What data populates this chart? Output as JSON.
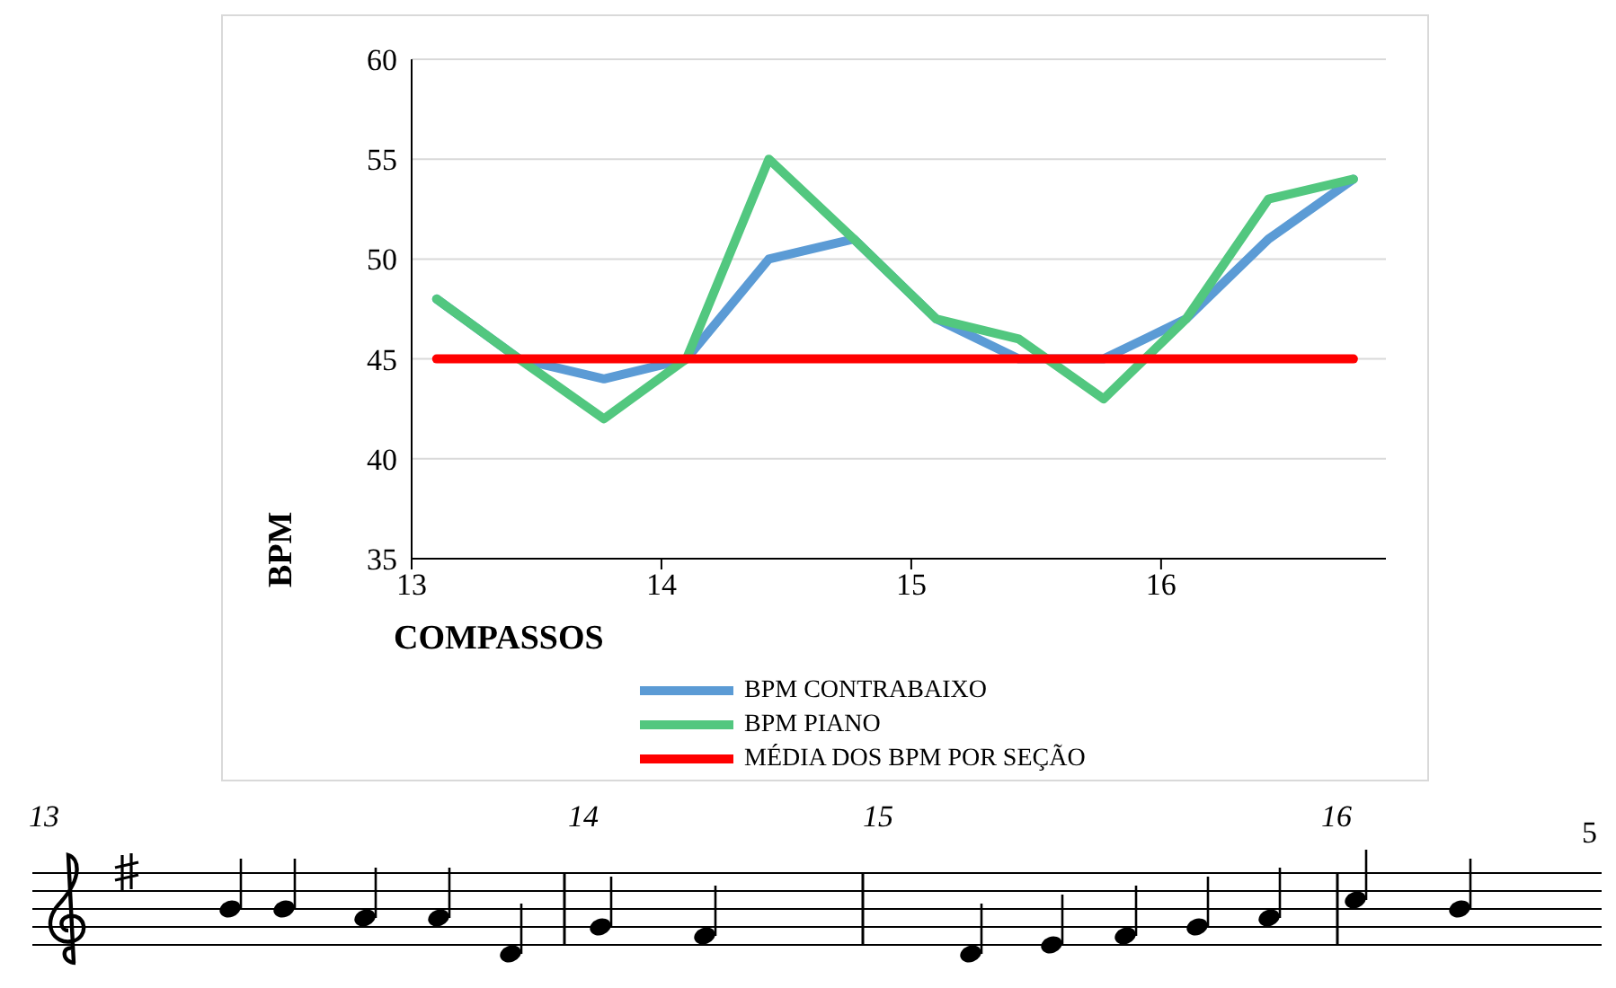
{
  "chart_data": {
    "type": "line",
    "xlabel": "COMPASSOS",
    "ylabel": "BPM",
    "x": [
      13.1,
      13.43,
      13.77,
      14.1,
      14.43,
      14.77,
      15.1,
      15.43,
      15.77,
      16.1,
      16.43,
      16.77
    ],
    "xlim": [
      13,
      16.9
    ],
    "xticks": [
      13,
      14,
      15,
      16
    ],
    "ylim": [
      35,
      60
    ],
    "yticks": [
      35,
      40,
      45,
      50,
      55,
      60
    ],
    "series": [
      {
        "name": "BPM CONTRABAIXO",
        "color": "#5b9bd5",
        "values": [
          48,
          45,
          44,
          45,
          50,
          51,
          47,
          45,
          45,
          47,
          51,
          54
        ]
      },
      {
        "name": "BPM PIANO",
        "color": "#52c77f",
        "values": [
          48,
          45,
          42,
          45,
          55,
          51,
          47,
          46,
          43,
          47,
          53,
          54
        ]
      },
      {
        "name": "MÉDIA DOS BPM POR SEÇÃO",
        "color": "#ff0000",
        "values": [
          45,
          45,
          45,
          45,
          45,
          45,
          45,
          45,
          45,
          45,
          45,
          45
        ]
      }
    ],
    "grid": "y",
    "legend": "bottom",
    "marker": "none",
    "line_style": "solid",
    "annotations": [
      "13",
      "14",
      "15",
      "16",
      "5"
    ]
  }
}
